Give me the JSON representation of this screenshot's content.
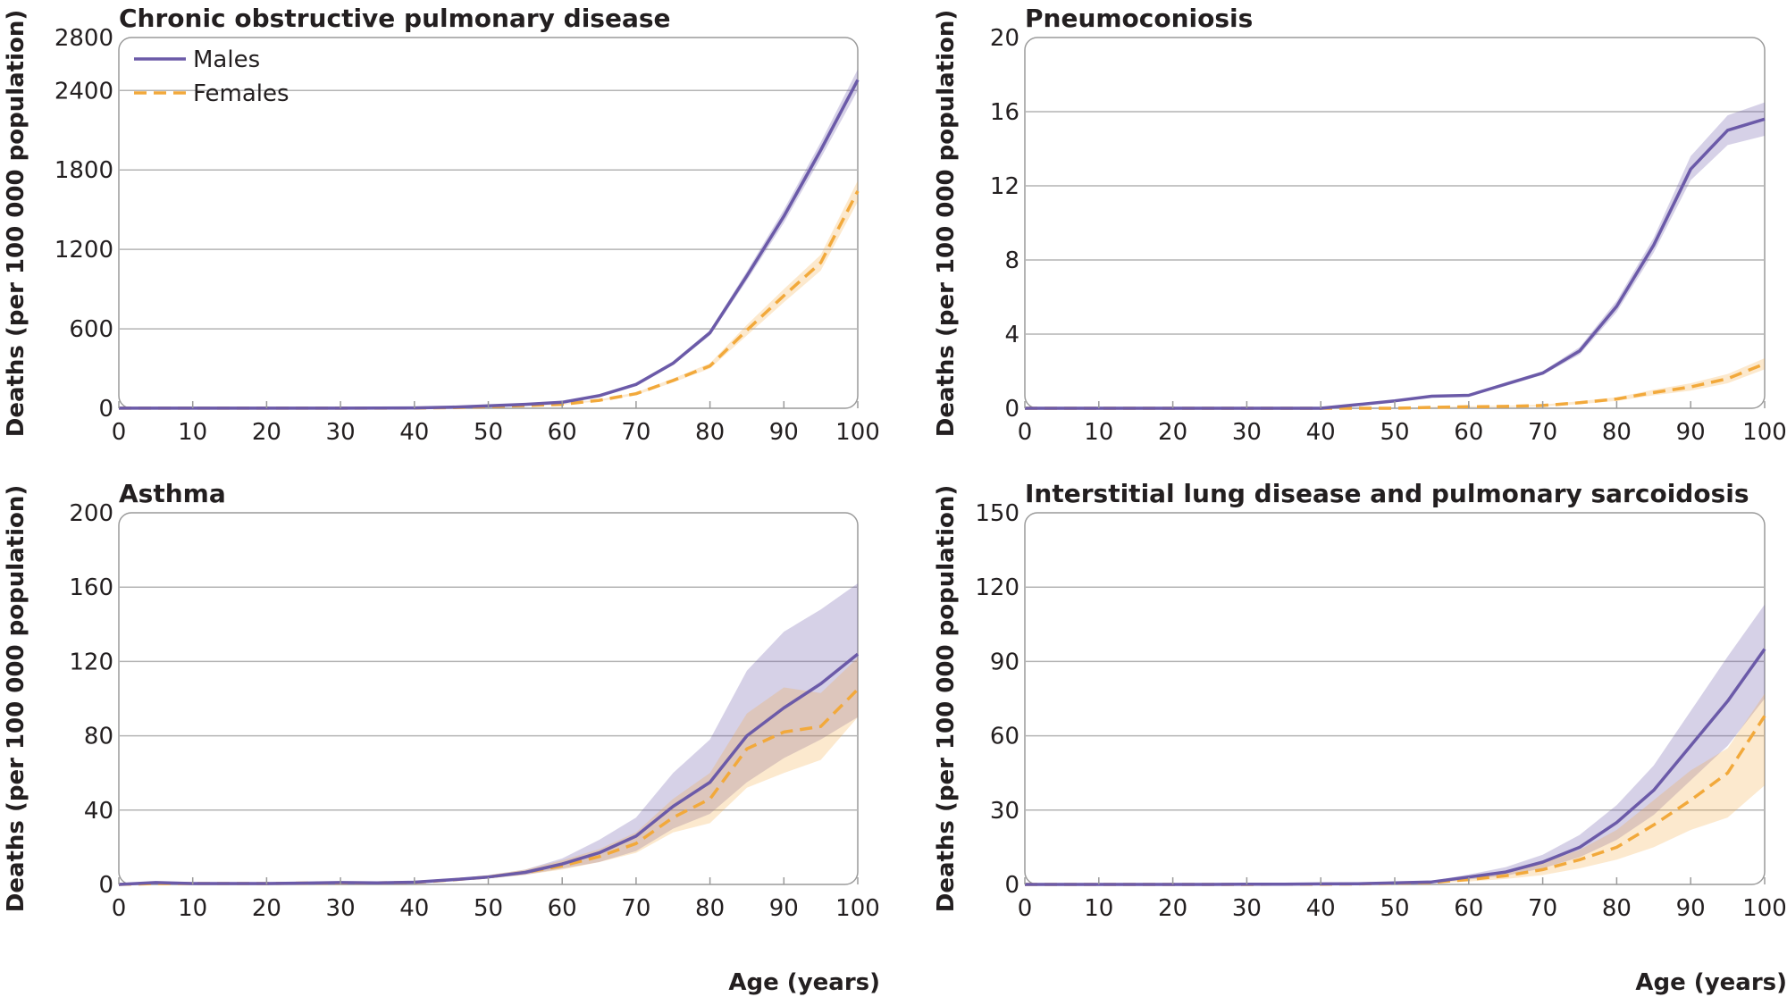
{
  "colors": {
    "males": "#6b5aa8",
    "females": "#f2a93b",
    "grid": "#b4b4b4",
    "frame": "#9a9a9a"
  },
  "legend": {
    "males": "Males",
    "females": "Females"
  },
  "chart_data": [
    {
      "type": "line",
      "title": "Chronic obstructive pulmonary disease",
      "xlabel": "",
      "ylabel": "Deaths (per 100 000 population)",
      "xlim": [
        0,
        100
      ],
      "ylim": [
        0,
        2800
      ],
      "xticks": [
        0,
        10,
        20,
        30,
        40,
        50,
        60,
        70,
        80,
        90,
        100
      ],
      "yticks": [
        0,
        600,
        1200,
        1800,
        2400,
        2800
      ],
      "x": [
        0,
        5,
        10,
        15,
        20,
        25,
        30,
        35,
        40,
        45,
        50,
        55,
        60,
        65,
        70,
        75,
        80,
        85,
        90,
        95,
        100
      ],
      "series": [
        {
          "name": "Males",
          "values": [
            1,
            1,
            1,
            1,
            1,
            1,
            1,
            2,
            3,
            8,
            18,
            30,
            45,
            95,
            180,
            340,
            570,
            1000,
            1450,
            1950,
            2480
          ],
          "lower": [
            0,
            0,
            0,
            0,
            0,
            0,
            0,
            1,
            2,
            6,
            15,
            26,
            40,
            88,
            170,
            325,
            550,
            965,
            1400,
            1890,
            2400
          ],
          "upper": [
            2,
            2,
            2,
            2,
            2,
            2,
            2,
            3,
            4,
            10,
            21,
            34,
            50,
            102,
            190,
            355,
            590,
            1035,
            1500,
            2010,
            2560
          ]
        },
        {
          "name": "Females",
          "values": [
            1,
            1,
            1,
            1,
            1,
            1,
            1,
            1,
            2,
            5,
            12,
            20,
            30,
            60,
            110,
            210,
            320,
            590,
            850,
            1100,
            1640
          ],
          "lower": [
            0,
            0,
            0,
            0,
            0,
            0,
            0,
            0,
            1,
            4,
            10,
            17,
            26,
            53,
            100,
            195,
            300,
            550,
            800,
            1040,
            1560
          ],
          "upper": [
            2,
            2,
            2,
            2,
            2,
            2,
            2,
            2,
            3,
            7,
            14,
            23,
            34,
            67,
            120,
            225,
            340,
            630,
            900,
            1160,
            1720
          ]
        }
      ]
    },
    {
      "type": "line",
      "title": "Pneumoconiosis",
      "xlabel": "",
      "ylabel": "Deaths (per 100 000 population)",
      "xlim": [
        0,
        100
      ],
      "ylim": [
        0,
        20
      ],
      "xticks": [
        0,
        10,
        20,
        30,
        40,
        50,
        60,
        70,
        80,
        90,
        100
      ],
      "yticks": [
        0,
        4,
        8,
        12,
        16,
        20
      ],
      "x": [
        0,
        5,
        10,
        15,
        20,
        25,
        30,
        35,
        40,
        45,
        50,
        55,
        60,
        65,
        70,
        75,
        80,
        85,
        90,
        95,
        100
      ],
      "series": [
        {
          "name": "Males",
          "values": [
            0,
            0,
            0,
            0,
            0,
            0,
            0,
            0,
            0,
            0.2,
            0.4,
            0.65,
            0.7,
            1.3,
            1.9,
            3.1,
            5.5,
            8.8,
            12.9,
            15.0,
            15.6
          ],
          "lower": [
            0,
            0,
            0,
            0,
            0,
            0,
            0,
            0,
            0,
            0.15,
            0.35,
            0.6,
            0.65,
            1.2,
            1.8,
            2.9,
            5.2,
            8.4,
            12.3,
            14.2,
            14.7
          ],
          "upper": [
            0,
            0,
            0,
            0,
            0,
            0,
            0,
            0,
            0,
            0.25,
            0.45,
            0.7,
            0.75,
            1.4,
            2.0,
            3.3,
            5.8,
            9.2,
            13.6,
            15.8,
            16.5
          ]
        },
        {
          "name": "Females",
          "values": [
            0,
            0,
            0,
            0,
            0,
            0,
            0,
            0,
            0,
            0,
            0,
            0.05,
            0.08,
            0.1,
            0.15,
            0.3,
            0.5,
            0.85,
            1.15,
            1.6,
            2.4
          ],
          "lower": [
            0,
            0,
            0,
            0,
            0,
            0,
            0,
            0,
            0,
            0,
            0,
            0.03,
            0.05,
            0.07,
            0.1,
            0.22,
            0.4,
            0.7,
            0.95,
            1.35,
            2.1
          ],
          "upper": [
            0,
            0,
            0,
            0,
            0,
            0,
            0,
            0,
            0,
            0,
            0,
            0.07,
            0.11,
            0.13,
            0.2,
            0.38,
            0.6,
            1.0,
            1.35,
            1.85,
            2.7
          ]
        }
      ]
    },
    {
      "type": "line",
      "title": "Asthma",
      "xlabel": "Age (years)",
      "ylabel": "Deaths (per 100 000 population)",
      "xlim": [
        0,
        100
      ],
      "ylim": [
        0,
        200
      ],
      "xticks": [
        0,
        10,
        20,
        30,
        40,
        50,
        60,
        70,
        80,
        90,
        100
      ],
      "yticks": [
        0,
        40,
        80,
        120,
        160,
        200
      ],
      "x": [
        0,
        5,
        10,
        15,
        20,
        25,
        30,
        35,
        40,
        45,
        50,
        55,
        60,
        65,
        70,
        75,
        80,
        85,
        90,
        95,
        100
      ],
      "series": [
        {
          "name": "Males",
          "values": [
            0,
            1,
            0.5,
            0.5,
            0.5,
            0.7,
            1,
            0.8,
            1.2,
            2.5,
            4,
            6.5,
            11,
            17,
            26,
            42,
            55,
            80,
            95,
            108,
            124
          ],
          "lower": [
            0,
            0.5,
            0.3,
            0.3,
            0.3,
            0.5,
            0.7,
            0.6,
            0.9,
            1.9,
            3.2,
            5.2,
            8.5,
            12,
            18,
            30,
            38,
            55,
            68,
            78,
            90
          ],
          "upper": [
            0.5,
            1.5,
            0.8,
            0.8,
            0.8,
            1,
            1.4,
            1.1,
            1.6,
            3.2,
            5,
            8,
            14,
            24,
            36,
            60,
            78,
            115,
            136,
            148,
            162
          ]
        },
        {
          "name": "Females",
          "values": [
            0,
            0.5,
            0.5,
            0.5,
            0.5,
            0.7,
            0.8,
            0.8,
            1.1,
            2.4,
            4,
            6.5,
            10,
            15,
            22,
            36,
            46,
            73,
            82,
            85,
            105
          ],
          "lower": [
            0,
            0.3,
            0.3,
            0.3,
            0.3,
            0.5,
            0.6,
            0.6,
            0.8,
            1.8,
            3.2,
            5.2,
            8,
            12,
            17,
            28,
            33,
            52,
            60,
            67,
            90
          ],
          "upper": [
            0.4,
            0.8,
            0.7,
            0.7,
            0.7,
            1,
            1.1,
            1.1,
            1.5,
            3.1,
            5,
            8,
            13,
            19,
            28,
            46,
            60,
            92,
            106,
            103,
            122
          ]
        }
      ]
    },
    {
      "type": "line",
      "title": "Interstitial lung disease and pulmonary sarcoidosis",
      "xlabel": "Age (years)",
      "ylabel": "Deaths (per 100 000 population)",
      "xlim": [
        0,
        100
      ],
      "ylim": [
        0,
        150
      ],
      "xticks": [
        0,
        10,
        20,
        30,
        40,
        50,
        60,
        70,
        80,
        90,
        100
      ],
      "yticks": [
        0,
        30,
        60,
        90,
        120,
        150
      ],
      "x": [
        0,
        5,
        10,
        15,
        20,
        25,
        30,
        35,
        40,
        45,
        50,
        55,
        60,
        65,
        70,
        75,
        80,
        85,
        90,
        95,
        100
      ],
      "series": [
        {
          "name": "Males",
          "values": [
            0,
            0,
            0,
            0,
            0,
            0,
            0.1,
            0.1,
            0.2,
            0.3,
            0.6,
            1,
            3,
            5,
            9,
            15,
            25,
            38,
            56,
            74,
            95
          ],
          "lower": [
            0,
            0,
            0,
            0,
            0,
            0,
            0.05,
            0.05,
            0.1,
            0.2,
            0.4,
            0.7,
            2,
            3.5,
            6.5,
            11,
            18,
            28,
            42,
            56,
            75
          ],
          "upper": [
            0.1,
            0.1,
            0.1,
            0.1,
            0.1,
            0.1,
            0.15,
            0.15,
            0.3,
            0.45,
            0.8,
            1.4,
            4,
            7,
            12,
            20,
            32,
            48,
            70,
            92,
            113
          ]
        },
        {
          "name": "Females",
          "values": [
            0,
            0,
            0,
            0,
            0,
            0,
            0,
            0.1,
            0.1,
            0.2,
            0.5,
            0.8,
            2,
            3.5,
            6,
            10,
            15,
            24,
            34,
            45,
            68
          ],
          "lower": [
            0,
            0,
            0,
            0,
            0,
            0,
            0,
            0.05,
            0.05,
            0.1,
            0.3,
            0.5,
            1.2,
            2.2,
            3.8,
            6.5,
            10,
            15,
            22,
            27,
            40
          ],
          "upper": [
            0.1,
            0.1,
            0.1,
            0.1,
            0.1,
            0.1,
            0.1,
            0.15,
            0.15,
            0.3,
            0.7,
            1.1,
            2.8,
            4.8,
            8.5,
            14,
            22,
            34,
            46,
            55,
            77
          ]
        }
      ]
    }
  ]
}
